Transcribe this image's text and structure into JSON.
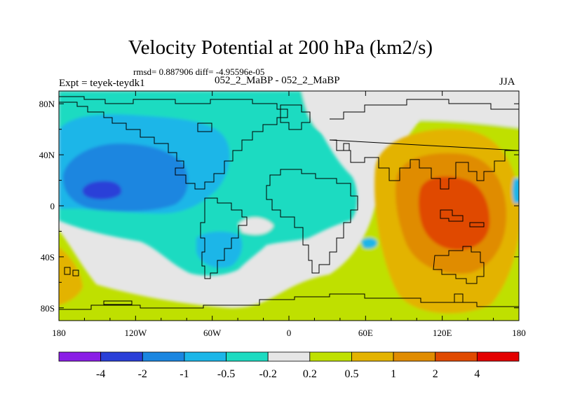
{
  "title": "Velocity Potential at 200 hPa (km2/s)",
  "stats_text": "rmsd= 0.887906 diff= -4.95596e-05",
  "experiment_label": "Expt = teyek-teydk1",
  "comparison_label": "052_2_MaBP - 052_2_MaBP",
  "season": "JJA",
  "chart_data": {
    "type": "contour-map",
    "title": "Velocity Potential at 200 hPa (km2/s)",
    "units": "km2/s",
    "x_axis": {
      "range": [
        -180,
        180
      ],
      "ticks": [
        -180,
        -120,
        -60,
        0,
        60,
        120,
        180
      ],
      "tick_labels": [
        "180",
        "120W",
        "60W",
        "0",
        "60E",
        "120E",
        "180"
      ]
    },
    "y_axis": {
      "range": [
        -90,
        90
      ],
      "ticks": [
        80,
        40,
        0,
        -40,
        -80
      ],
      "tick_labels": [
        "80N",
        "40N",
        "0",
        "40S",
        "80S"
      ]
    },
    "levels": [
      -4,
      -2,
      -1,
      -0.5,
      -0.2,
      0.2,
      0.5,
      1,
      2,
      4
    ],
    "level_labels": [
      "-4",
      "-2",
      "-1",
      "-0.5",
      "-0.2",
      "0.2",
      "0.5",
      "1",
      "2",
      "4"
    ],
    "colors": [
      "#8a1ee6",
      "#2a3fd8",
      "#1b86e0",
      "#1cb6e8",
      "#1ddbc1",
      "#e6e6e6",
      "#bfe000",
      "#e3b300",
      "#e08c00",
      "#e04a00",
      "#e30000"
    ],
    "features": [
      {
        "name": "negative center",
        "lon": -140,
        "lat": 14,
        "approx_value": -2.2
      },
      {
        "name": "positive center",
        "lon": 145,
        "lat": 0,
        "approx_value": 2.6
      }
    ]
  }
}
